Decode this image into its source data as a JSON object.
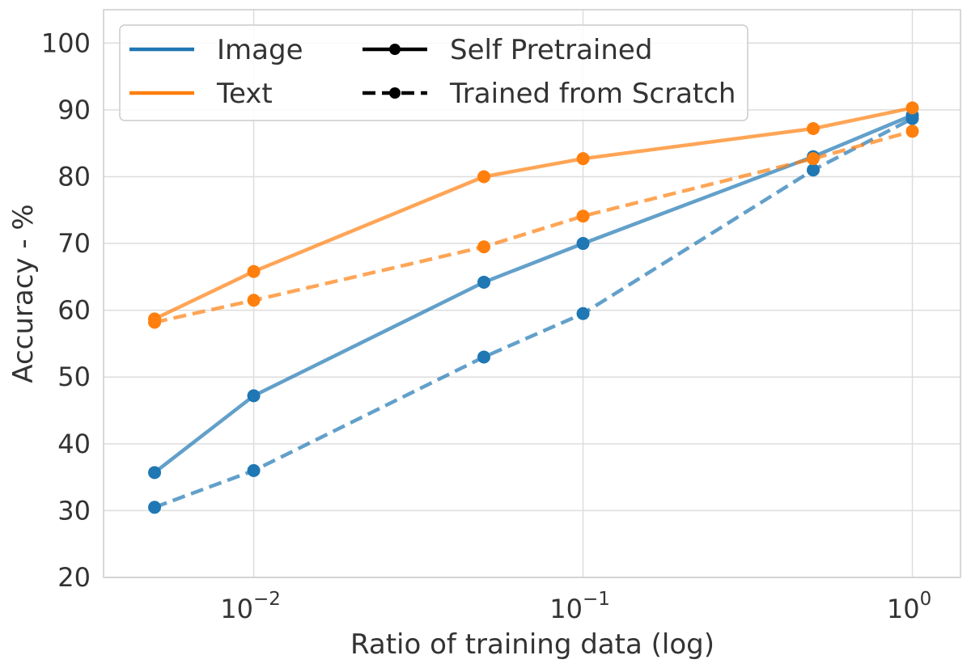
{
  "chart_data": {
    "type": "line",
    "xscale": "log",
    "xlabel": "Ratio of training data (log)",
    "ylabel": "Accuracy - %",
    "xlim": [
      0.0035,
      1.4
    ],
    "ylim": [
      20,
      105
    ],
    "grid": true,
    "x": [
      0.005,
      0.01,
      0.05,
      0.1,
      0.5,
      1.0
    ],
    "x_ticks": [
      {
        "value": 0.01,
        "base": "10",
        "exp": "−2"
      },
      {
        "value": 0.1,
        "base": "10",
        "exp": "−1"
      },
      {
        "value": 1.0,
        "base": "10",
        "exp": "0"
      }
    ],
    "y_ticks": [
      20,
      30,
      40,
      50,
      60,
      70,
      80,
      90,
      100
    ],
    "series": [
      {
        "name": "Image",
        "method": "Self Pretrained",
        "color": "#1f77b4",
        "style": "solid",
        "values": [
          35.7,
          47.2,
          64.2,
          70.0,
          83.0,
          89.2
        ]
      },
      {
        "name": "Image",
        "method": "Trained from Scratch",
        "color": "#1f77b4",
        "style": "dashed",
        "values": [
          30.5,
          36.0,
          53.0,
          59.5,
          81.0,
          88.7
        ]
      },
      {
        "name": "Text",
        "method": "Self Pretrained",
        "color": "#ff7f0e",
        "style": "solid",
        "values": [
          58.7,
          65.8,
          80.0,
          82.7,
          87.2,
          90.3
        ]
      },
      {
        "name": "Text",
        "method": "Trained from Scratch",
        "color": "#ff7f0e",
        "style": "dashed",
        "values": [
          58.2,
          61.5,
          69.5,
          74.1,
          82.7,
          86.8
        ]
      }
    ],
    "legend": {
      "placement": "top-left",
      "entries": [
        {
          "label": "Image",
          "kind": "color",
          "color": "#1f77b4"
        },
        {
          "label": "Text",
          "kind": "color",
          "color": "#ff7f0e"
        },
        {
          "label": "Self Pretrained",
          "kind": "style",
          "style": "solid",
          "color": "#000000"
        },
        {
          "label": "Trained from Scratch",
          "kind": "style",
          "style": "dashed",
          "color": "#000000"
        }
      ]
    }
  }
}
